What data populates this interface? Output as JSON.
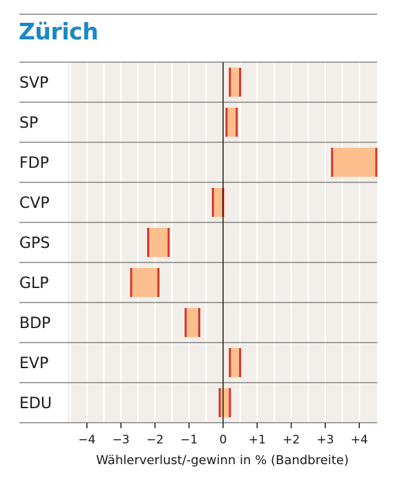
{
  "colors": {
    "title": "#1b88c4",
    "plot_bg": "#f2efea",
    "gridline": "#ffffff",
    "separator": "#6e6e6e",
    "zero_line": "#1a1a1a",
    "band_fill": "#fdbf8e",
    "band_edge": "#d8352a"
  },
  "chart_data": {
    "type": "range-bar",
    "title": "Zürich",
    "xlabel": "Wählerverlust/-gewinn in % (Bandbreite)",
    "xlim": [
      -4.5,
      4.5
    ],
    "xticks": [
      -4,
      -3,
      -2,
      -1,
      0,
      1,
      2,
      3,
      4
    ],
    "xtick_labels": [
      "−4",
      "−3",
      "−2",
      "−1",
      "0",
      "+1",
      "+2",
      "+3",
      "+4"
    ],
    "grid": true,
    "categories": [
      "SVP",
      "SP",
      "FDP",
      "CVP",
      "GPS",
      "GLP",
      "BDP",
      "EVP",
      "EDU"
    ],
    "ranges": [
      [
        0.2,
        0.5
      ],
      [
        0.1,
        0.4
      ],
      [
        3.2,
        4.5
      ],
      [
        -0.3,
        0.0
      ],
      [
        -2.2,
        -1.6
      ],
      [
        -2.7,
        -1.9
      ],
      [
        -1.1,
        -0.7
      ],
      [
        0.2,
        0.5
      ],
      [
        -0.1,
        0.2
      ]
    ]
  }
}
